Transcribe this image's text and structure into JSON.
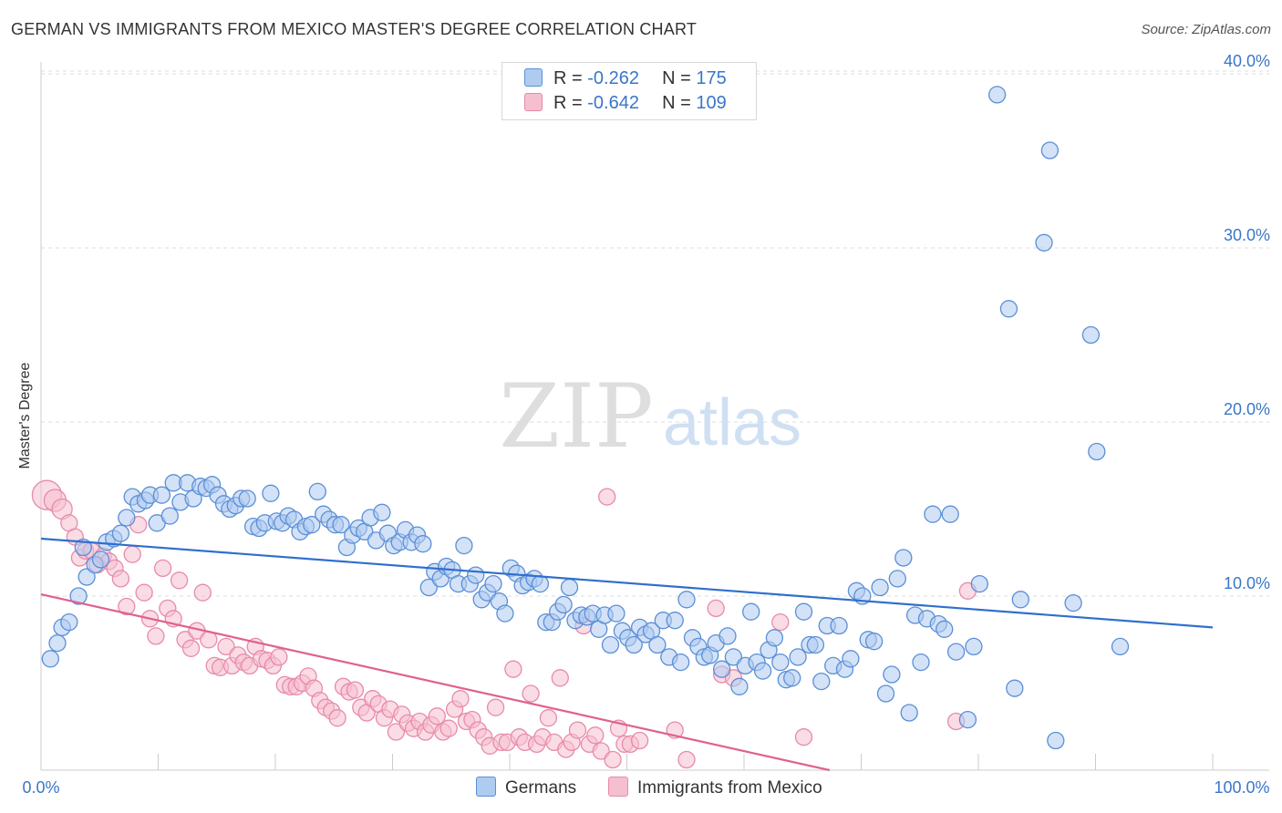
{
  "title": "GERMAN VS IMMIGRANTS FROM MEXICO MASTER'S DEGREE CORRELATION CHART",
  "source": "Source: ZipAtlas.com",
  "watermark": {
    "zip": "ZIP",
    "atlas": "atlas"
  },
  "legend": {
    "r_label": "R =",
    "n_label": "N =",
    "germans": {
      "r": "-0.262",
      "n": "175"
    },
    "mexico": {
      "r": "-0.642",
      "n": "109"
    }
  },
  "colors": {
    "germans_fill": "#aecbf0",
    "germans_stroke": "#5b8fd6",
    "germans_line": "#2f6fce",
    "mexico_fill": "#f5bfd0",
    "mexico_stroke": "#e88aaa",
    "mexico_line": "#e0608f",
    "tick_label": "#3a76c9",
    "grid": "#dddddd"
  },
  "chart_data": {
    "type": "scatter",
    "title": "GERMAN VS IMMIGRANTS FROM MEXICO MASTER'S DEGREE CORRELATION CHART",
    "ylabel": "Master's Degree",
    "xlabel": "",
    "xlim": [
      0,
      100
    ],
    "ylim": [
      0,
      41
    ],
    "x_tick_labels": [
      "0.0%",
      "100.0%"
    ],
    "y_ticks": [
      10,
      20,
      30,
      40
    ],
    "y_tick_labels": [
      "10.0%",
      "20.0%",
      "30.0%",
      "40.0%"
    ],
    "grid": true,
    "legend_position": "bottom",
    "series": [
      {
        "name": "Germans",
        "r": -0.262,
        "n": 175,
        "trend": [
          [
            0,
            13.3
          ],
          [
            100,
            8.2
          ]
        ],
        "points": [
          [
            0.8,
            6.4
          ],
          [
            1.4,
            7.3
          ],
          [
            1.8,
            8.2
          ],
          [
            2.4,
            8.5
          ],
          [
            3.2,
            10.0
          ],
          [
            3.6,
            12.8
          ],
          [
            3.9,
            11.1
          ],
          [
            4.6,
            11.8
          ],
          [
            5.1,
            12.1
          ],
          [
            5.6,
            13.1
          ],
          [
            6.2,
            13.3
          ],
          [
            6.8,
            13.6
          ],
          [
            7.3,
            14.5
          ],
          [
            7.8,
            15.7
          ],
          [
            8.3,
            15.3
          ],
          [
            8.9,
            15.5
          ],
          [
            9.3,
            15.8
          ],
          [
            9.9,
            14.2
          ],
          [
            10.3,
            15.8
          ],
          [
            11.0,
            14.6
          ],
          [
            11.3,
            16.5
          ],
          [
            11.9,
            15.4
          ],
          [
            12.5,
            16.5
          ],
          [
            13.0,
            15.6
          ],
          [
            13.6,
            16.3
          ],
          [
            14.1,
            16.2
          ],
          [
            14.6,
            16.4
          ],
          [
            15.1,
            15.8
          ],
          [
            15.6,
            15.3
          ],
          [
            16.1,
            15.0
          ],
          [
            16.6,
            15.2
          ],
          [
            17.1,
            15.6
          ],
          [
            17.6,
            15.6
          ],
          [
            18.1,
            14.0
          ],
          [
            18.6,
            13.9
          ],
          [
            19.1,
            14.2
          ],
          [
            19.6,
            15.9
          ],
          [
            20.1,
            14.3
          ],
          [
            20.6,
            14.2
          ],
          [
            21.1,
            14.6
          ],
          [
            21.6,
            14.4
          ],
          [
            22.1,
            13.7
          ],
          [
            22.6,
            14.0
          ],
          [
            23.1,
            14.1
          ],
          [
            23.6,
            16.0
          ],
          [
            24.1,
            14.7
          ],
          [
            24.6,
            14.4
          ],
          [
            25.1,
            14.1
          ],
          [
            25.6,
            14.1
          ],
          [
            26.1,
            12.8
          ],
          [
            26.6,
            13.5
          ],
          [
            27.1,
            13.9
          ],
          [
            27.6,
            13.7
          ],
          [
            28.1,
            14.5
          ],
          [
            28.6,
            13.2
          ],
          [
            29.1,
            14.8
          ],
          [
            29.6,
            13.6
          ],
          [
            30.1,
            12.9
          ],
          [
            30.6,
            13.1
          ],
          [
            31.1,
            13.8
          ],
          [
            31.6,
            13.1
          ],
          [
            32.1,
            13.5
          ],
          [
            32.6,
            13.0
          ],
          [
            33.1,
            10.5
          ],
          [
            33.6,
            11.4
          ],
          [
            34.1,
            11.0
          ],
          [
            34.6,
            11.7
          ],
          [
            35.1,
            11.5
          ],
          [
            35.6,
            10.7
          ],
          [
            36.1,
            12.9
          ],
          [
            36.6,
            10.7
          ],
          [
            37.1,
            11.2
          ],
          [
            37.6,
            9.8
          ],
          [
            38.1,
            10.2
          ],
          [
            38.6,
            10.7
          ],
          [
            39.1,
            9.7
          ],
          [
            39.6,
            9.0
          ],
          [
            40.1,
            11.6
          ],
          [
            40.6,
            11.3
          ],
          [
            41.1,
            10.6
          ],
          [
            41.6,
            10.8
          ],
          [
            42.1,
            11.0
          ],
          [
            42.6,
            10.7
          ],
          [
            43.1,
            8.5
          ],
          [
            43.6,
            8.5
          ],
          [
            44.1,
            9.1
          ],
          [
            44.6,
            9.5
          ],
          [
            45.1,
            10.5
          ],
          [
            45.6,
            8.6
          ],
          [
            46.1,
            8.9
          ],
          [
            46.6,
            8.8
          ],
          [
            47.1,
            9.0
          ],
          [
            47.6,
            8.1
          ],
          [
            48.1,
            8.9
          ],
          [
            48.6,
            7.2
          ],
          [
            49.1,
            9.0
          ],
          [
            49.6,
            8.0
          ],
          [
            50.1,
            7.6
          ],
          [
            50.6,
            7.2
          ],
          [
            51.1,
            8.2
          ],
          [
            51.6,
            7.8
          ],
          [
            52.1,
            8.0
          ],
          [
            52.6,
            7.2
          ],
          [
            53.1,
            8.6
          ],
          [
            53.6,
            6.5
          ],
          [
            54.1,
            8.6
          ],
          [
            54.6,
            6.2
          ],
          [
            55.1,
            9.8
          ],
          [
            55.6,
            7.6
          ],
          [
            56.1,
            7.1
          ],
          [
            56.6,
            6.5
          ],
          [
            57.1,
            6.6
          ],
          [
            57.6,
            7.3
          ],
          [
            58.1,
            5.8
          ],
          [
            58.6,
            7.7
          ],
          [
            59.1,
            6.5
          ],
          [
            59.6,
            4.8
          ],
          [
            60.1,
            6.0
          ],
          [
            60.6,
            9.1
          ],
          [
            61.1,
            6.2
          ],
          [
            61.6,
            5.7
          ],
          [
            62.1,
            6.9
          ],
          [
            62.6,
            7.6
          ],
          [
            63.1,
            6.2
          ],
          [
            63.6,
            5.2
          ],
          [
            64.1,
            5.3
          ],
          [
            64.6,
            6.5
          ],
          [
            65.1,
            9.1
          ],
          [
            65.6,
            7.2
          ],
          [
            66.1,
            7.2
          ],
          [
            66.6,
            5.1
          ],
          [
            67.1,
            8.3
          ],
          [
            67.6,
            6.0
          ],
          [
            68.1,
            8.3
          ],
          [
            68.6,
            5.8
          ],
          [
            69.1,
            6.4
          ],
          [
            69.6,
            10.3
          ],
          [
            70.1,
            10.0
          ],
          [
            70.6,
            7.5
          ],
          [
            71.1,
            7.4
          ],
          [
            71.6,
            10.5
          ],
          [
            72.1,
            4.4
          ],
          [
            72.6,
            5.5
          ],
          [
            73.1,
            11.0
          ],
          [
            73.6,
            12.2
          ],
          [
            74.1,
            3.3
          ],
          [
            74.6,
            8.9
          ],
          [
            75.1,
            6.2
          ],
          [
            75.6,
            8.7
          ],
          [
            76.1,
            14.7
          ],
          [
            76.6,
            8.4
          ],
          [
            77.1,
            8.1
          ],
          [
            77.6,
            14.7
          ],
          [
            78.1,
            6.8
          ],
          [
            79.1,
            2.9
          ],
          [
            79.6,
            7.1
          ],
          [
            80.1,
            10.7
          ],
          [
            81.6,
            38.8
          ],
          [
            82.6,
            26.5
          ],
          [
            83.1,
            4.7
          ],
          [
            83.6,
            9.8
          ],
          [
            85.6,
            30.3
          ],
          [
            86.1,
            35.6
          ],
          [
            86.6,
            1.7
          ],
          [
            88.1,
            9.6
          ],
          [
            89.6,
            25.0
          ],
          [
            90.1,
            18.3
          ],
          [
            92.1,
            7.1
          ]
        ]
      },
      {
        "name": "Immigrants from Mexico",
        "r": -0.642,
        "n": 109,
        "trend": [
          [
            0,
            10.1
          ],
          [
            67.3,
            0
          ]
        ],
        "points": [
          [
            0.5,
            15.8
          ],
          [
            1.2,
            15.5
          ],
          [
            1.8,
            15.0
          ],
          [
            2.4,
            14.2
          ],
          [
            2.9,
            13.4
          ],
          [
            3.3,
            12.2
          ],
          [
            3.8,
            12.6
          ],
          [
            4.3,
            12.6
          ],
          [
            4.8,
            11.8
          ],
          [
            5.3,
            12.3
          ],
          [
            5.8,
            12.0
          ],
          [
            6.3,
            11.6
          ],
          [
            6.8,
            11.0
          ],
          [
            7.3,
            9.4
          ],
          [
            7.8,
            12.4
          ],
          [
            8.3,
            14.1
          ],
          [
            8.8,
            10.2
          ],
          [
            9.3,
            8.7
          ],
          [
            9.8,
            7.7
          ],
          [
            10.4,
            11.6
          ],
          [
            10.8,
            9.3
          ],
          [
            11.3,
            8.7
          ],
          [
            11.8,
            10.9
          ],
          [
            12.3,
            7.5
          ],
          [
            12.8,
            7.0
          ],
          [
            13.3,
            8.0
          ],
          [
            13.8,
            10.2
          ],
          [
            14.3,
            7.5
          ],
          [
            14.8,
            6.0
          ],
          [
            15.3,
            5.9
          ],
          [
            15.8,
            7.1
          ],
          [
            16.3,
            6.0
          ],
          [
            16.8,
            6.6
          ],
          [
            17.3,
            6.2
          ],
          [
            17.8,
            6.0
          ],
          [
            18.3,
            7.1
          ],
          [
            18.8,
            6.4
          ],
          [
            19.3,
            6.3
          ],
          [
            19.8,
            6.0
          ],
          [
            20.3,
            6.5
          ],
          [
            20.8,
            4.9
          ],
          [
            21.3,
            4.8
          ],
          [
            21.8,
            4.8
          ],
          [
            22.3,
            5.0
          ],
          [
            22.8,
            5.4
          ],
          [
            23.3,
            4.7
          ],
          [
            23.8,
            4.0
          ],
          [
            24.3,
            3.6
          ],
          [
            24.8,
            3.4
          ],
          [
            25.3,
            3.0
          ],
          [
            25.8,
            4.8
          ],
          [
            26.3,
            4.5
          ],
          [
            26.8,
            4.6
          ],
          [
            27.3,
            3.6
          ],
          [
            27.8,
            3.3
          ],
          [
            28.3,
            4.1
          ],
          [
            28.8,
            3.8
          ],
          [
            29.3,
            3.0
          ],
          [
            29.8,
            3.5
          ],
          [
            30.3,
            2.2
          ],
          [
            30.8,
            3.2
          ],
          [
            31.3,
            2.7
          ],
          [
            31.8,
            2.4
          ],
          [
            32.3,
            2.8
          ],
          [
            32.8,
            2.2
          ],
          [
            33.3,
            2.6
          ],
          [
            33.8,
            3.1
          ],
          [
            34.3,
            2.2
          ],
          [
            34.8,
            2.4
          ],
          [
            35.3,
            3.5
          ],
          [
            35.8,
            4.1
          ],
          [
            36.3,
            2.8
          ],
          [
            36.8,
            2.9
          ],
          [
            37.3,
            2.3
          ],
          [
            37.8,
            1.9
          ],
          [
            38.3,
            1.4
          ],
          [
            38.8,
            3.6
          ],
          [
            39.3,
            1.6
          ],
          [
            39.8,
            1.6
          ],
          [
            40.3,
            5.8
          ],
          [
            40.8,
            1.9
          ],
          [
            41.3,
            1.6
          ],
          [
            41.8,
            4.4
          ],
          [
            42.3,
            1.5
          ],
          [
            42.8,
            1.9
          ],
          [
            43.3,
            3.0
          ],
          [
            43.8,
            1.6
          ],
          [
            44.3,
            5.3
          ],
          [
            44.8,
            1.2
          ],
          [
            45.3,
            1.6
          ],
          [
            45.8,
            2.3
          ],
          [
            46.3,
            8.3
          ],
          [
            46.8,
            1.5
          ],
          [
            47.3,
            2.0
          ],
          [
            47.8,
            1.1
          ],
          [
            48.3,
            15.7
          ],
          [
            48.8,
            0.6
          ],
          [
            49.3,
            2.4
          ],
          [
            49.8,
            1.5
          ],
          [
            50.3,
            1.5
          ],
          [
            51.1,
            1.7
          ],
          [
            54.1,
            2.3
          ],
          [
            55.1,
            0.6
          ],
          [
            57.6,
            9.3
          ],
          [
            58.1,
            5.5
          ],
          [
            59.1,
            5.3
          ],
          [
            63.1,
            8.5
          ],
          [
            65.1,
            1.9
          ],
          [
            78.1,
            2.8
          ],
          [
            79.1,
            10.3
          ]
        ]
      }
    ]
  }
}
